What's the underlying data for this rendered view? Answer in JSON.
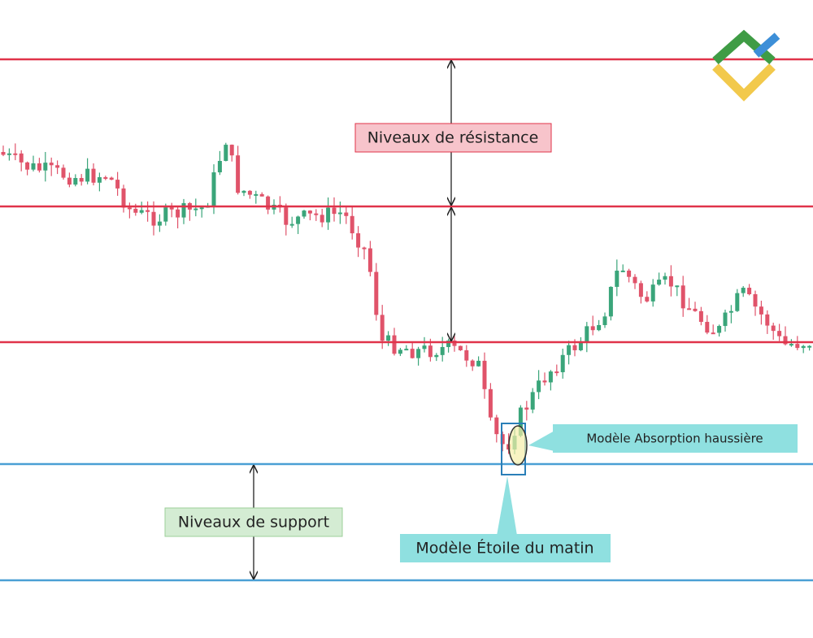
{
  "labels": {
    "resistance": "Niveaux de résistance",
    "support": "Niveaux de support",
    "engulfing": "Modèle Absorption haussière",
    "morning_star": "Modèle Étoile du matin"
  }
}
